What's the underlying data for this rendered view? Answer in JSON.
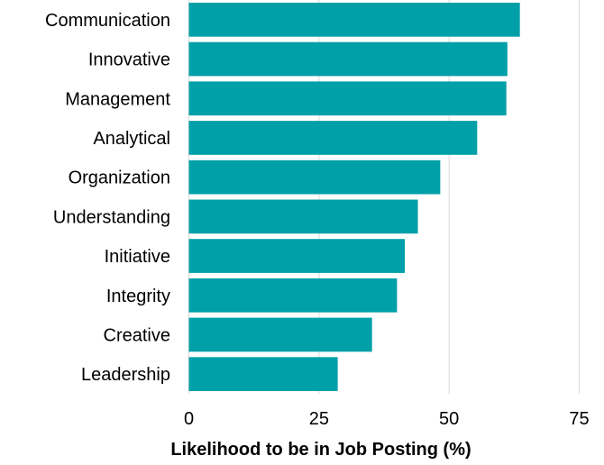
{
  "chart_data": {
    "type": "bar",
    "orientation": "horizontal",
    "categories": [
      "Communication",
      "Innovative",
      "Management",
      "Analytical",
      "Organization",
      "Understanding",
      "Initiative",
      "Integrity",
      "Creative",
      "Leadership"
    ],
    "values": [
      63.6,
      61.2,
      61.0,
      55.4,
      48.3,
      44.0,
      41.5,
      40.0,
      35.2,
      28.6
    ],
    "title": "",
    "xlabel": "Likelihood to be in Job Posting (%)",
    "ylabel": "",
    "xlim": [
      0,
      75
    ],
    "xticks": [
      "0",
      "25",
      "50",
      "75"
    ],
    "grid": "vertical",
    "legend": "none",
    "bar_color": "#00A0A8",
    "grid_color": "#d9d9d9"
  }
}
